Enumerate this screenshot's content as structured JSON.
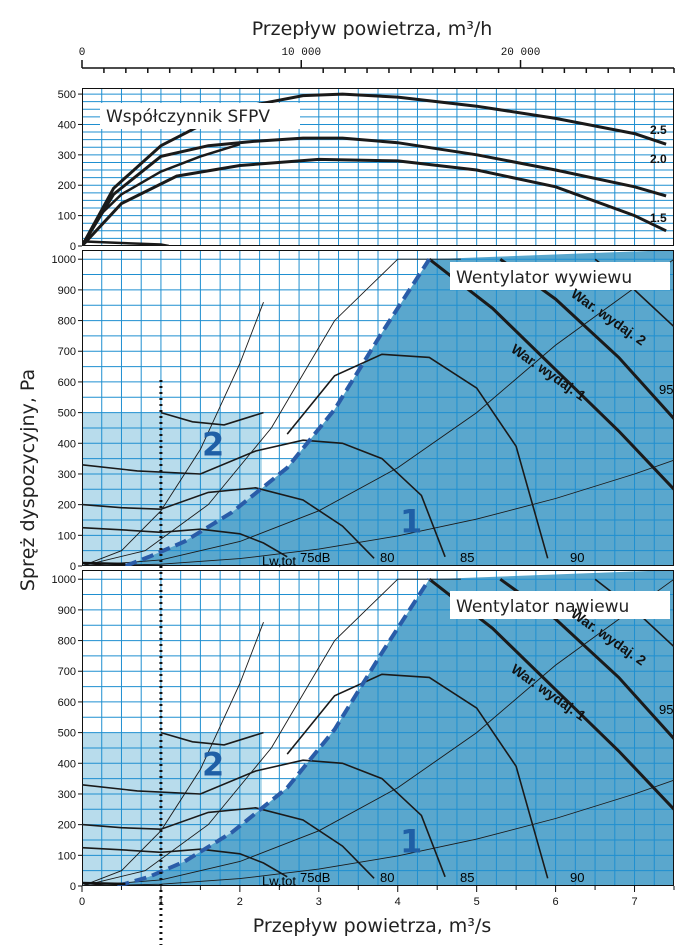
{
  "chart_data": {
    "type": "line",
    "title_top": "Przepływ powietrza, m³/h",
    "title_bottom": "Przepływ powietrza, m³/s",
    "ylabel": "Spręż dyspozycyjny, Pa",
    "x_ticks_top": [
      "0",
      "10 000",
      "20 000"
    ],
    "x_ticks_bottom": [
      "0",
      "1",
      "2",
      "3",
      "4",
      "5",
      "6",
      "7"
    ],
    "xlim": [
      0,
      7.5
    ],
    "panels": [
      {
        "id": "sfp",
        "label": "Współczynnik SFPV",
        "ylim": [
          0,
          520
        ],
        "y_ticks": [
          "500",
          "400",
          "300",
          "200",
          "100",
          "0"
        ],
        "y_tick_values": [
          500,
          400,
          300,
          200,
          100,
          0
        ],
        "series": [
          {
            "name": "2.5",
            "x": [
              0,
              0.4,
              1,
              1.6,
              2.2,
              2.8,
              3.3,
              4,
              5,
              6,
              7,
              7.4
            ],
            "y": [
              0,
              190,
              330,
              410,
              465,
              495,
              500,
              490,
              460,
              420,
              370,
              335
            ]
          },
          {
            "name": "2.0",
            "x": [
              0,
              0.4,
              1,
              1.6,
              2.2,
              2.8,
              3.3,
              4,
              5,
              6,
              7,
              7.4
            ],
            "y": [
              0,
              170,
              295,
              330,
              345,
              355,
              355,
              340,
              300,
              250,
              195,
              165
            ]
          },
          {
            "name": "1.5",
            "x": [
              0,
              0.5,
              1.2,
              2,
              3,
              4,
              5,
              6,
              7,
              7.4
            ],
            "y": [
              0,
              140,
              230,
              265,
              285,
              280,
              250,
              195,
              100,
              50
            ]
          },
          {
            "name": "",
            "x": [
              0,
              0.2,
              0.5,
              1,
              1.5,
              2
            ],
            "y": [
              0,
              95,
              170,
              245,
              295,
              335
            ]
          },
          {
            "name": "",
            "x": [
              0,
              0.5,
              1,
              1.1
            ],
            "y": [
              15,
              10,
              5,
              0
            ]
          }
        ],
        "sfp_labels": [
          "2.5",
          "2.0",
          "1.5"
        ]
      },
      {
        "id": "exhaust",
        "label": "Wentylator wywiewu",
        "ylim": [
          0,
          1030
        ],
        "y_ticks": [
          "1000",
          "900",
          "800",
          "700",
          "600",
          "500",
          "400",
          "300",
          "200",
          "100",
          "0"
        ],
        "y_tick_values": [
          1000,
          900,
          800,
          700,
          600,
          500,
          400,
          300,
          200,
          100,
          0
        ],
        "zone_labels": [
          "1",
          "2"
        ],
        "region_2": {
          "x": [
            0,
            2.28
          ],
          "y": [
            0,
            500
          ]
        },
        "dashed_limit": {
          "x": [
            0.55,
            0.85,
            1.3,
            1.9,
            2.6,
            3.2,
            3.8,
            4.4
          ],
          "y": [
            0,
            30,
            80,
            175,
            320,
            510,
            760,
            1000
          ]
        },
        "db_curves": [
          {
            "name": "Lw,tot 75dB",
            "x": [
              0,
              0.5,
              1,
              1.5,
              2,
              2.3,
              2.6
            ],
            "y": [
              125,
              118,
              110,
              120,
              105,
              75,
              30
            ]
          },
          {
            "name": "80",
            "x": [
              0,
              0.5,
              1,
              1.6,
              2.2,
              2.8,
              3.3,
              3.7
            ],
            "y": [
              200,
              190,
              185,
              240,
              255,
              215,
              130,
              25
            ]
          },
          {
            "name": "85",
            "x": [
              0,
              0.7,
              1.5,
              2.2,
              2.8,
              3.3,
              3.8,
              4.3,
              4.6
            ],
            "y": [
              330,
              310,
              300,
              375,
              410,
              400,
              350,
              230,
              30
            ]
          },
          {
            "name": "90",
            "x": [
              2.6,
              3.2,
              3.8,
              4.4,
              5,
              5.5,
              5.9
            ],
            "y": [
              430,
              620,
              690,
              680,
              580,
              390,
              25
            ]
          },
          {
            "name": "",
            "x": [
              1,
              1.4,
              1.8,
              2.3
            ],
            "y": [
              500,
              470,
              460,
              500
            ]
          }
        ],
        "db_labels": [
          "Lw,tot",
          "75dB",
          "80",
          "85",
          "90",
          "95"
        ],
        "capacity_curves": [
          {
            "name": "War. wydaj. 1",
            "x": [
              4.4,
              5.2,
              6,
              6.8,
              7.5
            ],
            "y": [
              1000,
              840,
              640,
              440,
              250
            ]
          },
          {
            "name": "War. wydaj. 2",
            "x": [
              5.3,
              6,
              6.8,
              7.5
            ],
            "y": [
              1000,
              870,
              680,
              480
            ]
          },
          {
            "name": "",
            "x": [
              6.5,
              7,
              7.5
            ],
            "y": [
              1000,
              900,
              780
            ]
          }
        ],
        "system_curves": [
          {
            "x": [
              0,
              1,
              2,
              3,
              4,
              5,
              6,
              7,
              7.5
            ],
            "y": [
              0,
              6,
              24,
              55,
              98,
              153,
              220,
              300,
              345
            ]
          },
          {
            "x": [
              0,
              1,
              2,
              3,
              4,
              5,
              6,
              7.5
            ],
            "y": [
              0,
              20,
              80,
              180,
              320,
              500,
              720,
              1000
            ]
          },
          {
            "x": [
              0,
              0.8,
              1.6,
              2.4,
              3.2,
              4,
              4.8
            ],
            "y": [
              0,
              50,
              200,
              450,
              800,
              1000,
              1000
            ]
          },
          {
            "x": [
              0,
              0.5,
              1,
              1.5,
              2,
              2.3
            ],
            "y": [
              0,
              50,
              180,
              380,
              660,
              860
            ]
          }
        ]
      },
      {
        "id": "supply",
        "label": "Wentylator nawiewu",
        "ylim": [
          0,
          1030
        ],
        "y_ticks": [
          "1000",
          "900",
          "800",
          "700",
          "600",
          "500",
          "400",
          "300",
          "200",
          "100",
          "0"
        ],
        "y_tick_values": [
          1000,
          900,
          800,
          700,
          600,
          500,
          400,
          300,
          200,
          100,
          0
        ],
        "zone_labels": [
          "1",
          "2"
        ],
        "region_2": {
          "x": [
            0,
            2.28
          ],
          "y": [
            0,
            500
          ]
        },
        "dashed_limit": {
          "x": [
            0.45,
            0.85,
            1.3,
            1.9,
            2.6,
            3.2,
            3.8,
            4.4
          ],
          "y": [
            0,
            30,
            80,
            175,
            320,
            510,
            760,
            1000
          ]
        },
        "db_curves": [
          {
            "name": "Lw,tot 75dB",
            "x": [
              0,
              0.5,
              1,
              1.5,
              2,
              2.3,
              2.6
            ],
            "y": [
              125,
              118,
              110,
              120,
              105,
              75,
              30
            ]
          },
          {
            "name": "80",
            "x": [
              0,
              0.5,
              1,
              1.6,
              2.2,
              2.8,
              3.3,
              3.7
            ],
            "y": [
              200,
              190,
              185,
              240,
              255,
              215,
              130,
              25
            ]
          },
          {
            "name": "85",
            "x": [
              0,
              0.7,
              1.5,
              2.2,
              2.8,
              3.3,
              3.8,
              4.3,
              4.6
            ],
            "y": [
              330,
              310,
              300,
              375,
              410,
              400,
              350,
              230,
              30
            ]
          },
          {
            "name": "90",
            "x": [
              2.6,
              3.2,
              3.8,
              4.4,
              5,
              5.5,
              5.9
            ],
            "y": [
              430,
              620,
              690,
              680,
              580,
              390,
              25
            ]
          },
          {
            "name": "",
            "x": [
              1,
              1.4,
              1.8,
              2.3
            ],
            "y": [
              500,
              470,
              460,
              500
            ]
          }
        ],
        "db_labels": [
          "Lw,tot",
          "75dB",
          "80",
          "85",
          "90",
          "95"
        ],
        "capacity_curves": [
          {
            "name": "War. wydaj. 1",
            "x": [
              4.4,
              5.2,
              6,
              6.8,
              7.5
            ],
            "y": [
              1000,
              840,
              640,
              440,
              250
            ]
          },
          {
            "name": "War. wydaj. 2",
            "x": [
              5.3,
              6,
              6.8,
              7.5
            ],
            "y": [
              1000,
              870,
              680,
              480
            ]
          },
          {
            "name": "",
            "x": [
              6.5,
              7,
              7.5
            ],
            "y": [
              1000,
              900,
              780
            ]
          }
        ],
        "system_curves": [
          {
            "x": [
              0,
              1,
              2,
              3,
              4,
              5,
              6,
              7,
              7.5
            ],
            "y": [
              0,
              6,
              24,
              55,
              98,
              153,
              220,
              300,
              345
            ]
          },
          {
            "x": [
              0,
              1,
              2,
              3,
              4,
              5,
              6,
              7.5
            ],
            "y": [
              0,
              20,
              80,
              180,
              320,
              500,
              720,
              1000
            ]
          },
          {
            "x": [
              0,
              0.8,
              1.6,
              2.4,
              3.2,
              4,
              4.8
            ],
            "y": [
              0,
              50,
              200,
              450,
              800,
              1000,
              1000
            ]
          },
          {
            "x": [
              0,
              0.5,
              1,
              1.5,
              2,
              2.3
            ],
            "y": [
              0,
              50,
              180,
              380,
              660,
              860
            ]
          }
        ]
      }
    ],
    "operating_point_x": 1,
    "colors": {
      "region_1": "#5aa7cd",
      "region_2": "#b8dcec",
      "grid": "#1f8fd0",
      "dashed": "#2a5ca8",
      "zone_text": "#1f5fa6"
    }
  }
}
